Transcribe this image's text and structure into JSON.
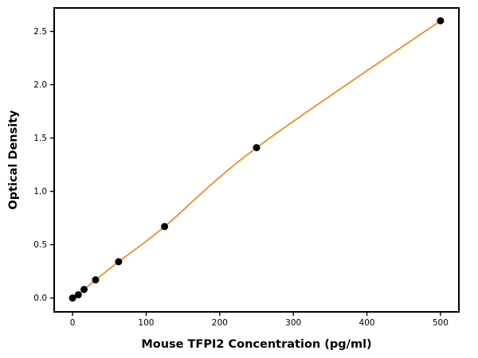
{
  "figure": {
    "background_color": "#ffffff",
    "frame_color": "#000000"
  },
  "chart_data": {
    "type": "scatter",
    "title": "",
    "xlabel": "Mouse TFPI2 Concentration (pg/ml)",
    "ylabel": "Optical Density",
    "xlim": [
      -25,
      525
    ],
    "ylim": [
      -0.13,
      2.72
    ],
    "xticks": [
      0,
      100,
      200,
      300,
      400,
      500
    ],
    "xtick_labels": [
      "0",
      "100",
      "200",
      "300",
      "400",
      "500"
    ],
    "yticks": [
      0.0,
      0.5,
      1.0,
      1.5,
      2.0,
      2.5
    ],
    "ytick_labels": [
      "0.0",
      "0.5",
      "1.0",
      "1.5",
      "2.0",
      "2.5"
    ],
    "grid": false,
    "legend_position": "none",
    "series": [
      {
        "name": "standard-points",
        "type": "scatter",
        "marker": "circle",
        "color": "#000000",
        "x": [
          0,
          7.8,
          15.6,
          31.25,
          62.5,
          125,
          250,
          500
        ],
        "y": [
          0.0,
          0.03,
          0.08,
          0.17,
          0.34,
          0.67,
          1.41,
          2.6
        ]
      },
      {
        "name": "fitted-curve",
        "type": "line",
        "color": "#ff7f0e",
        "fit": "4PL standard curve through standard-points"
      }
    ]
  }
}
